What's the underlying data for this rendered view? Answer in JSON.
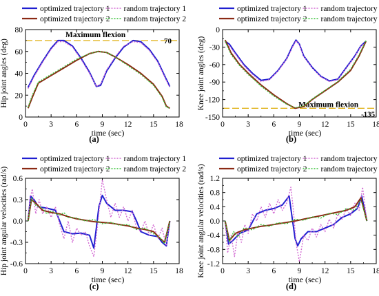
{
  "colors": {
    "opt1": "#1f1fd0",
    "rand1": "#d36ad3",
    "opt2": "#8b2a14",
    "rand2": "#38c238",
    "flex": "#e0b31c"
  },
  "legend_labels": [
    "optimized trajectory 1",
    "random trajectory 1",
    "optimized trajectory 2",
    "random trajectory 2"
  ],
  "chart_data": [
    {
      "id": "a",
      "type": "line",
      "panel_label": "(a)",
      "xlabel": "time (sec)",
      "ylabel": "Hip joint angles (deg)",
      "xlim": [
        0,
        18
      ],
      "ylim": [
        0,
        80
      ],
      "xticks": [
        0,
        3,
        6,
        9,
        12,
        15,
        18
      ],
      "yticks": [
        0,
        20,
        40,
        60,
        80
      ],
      "annotation": {
        "text": "Maximum flexion",
        "value_label": "70",
        "y": 70
      },
      "series": [
        {
          "name": "optimized trajectory 1",
          "style": "solid",
          "x": [
            0.3,
            1,
            2,
            3,
            3.8,
            4.5,
            5.5,
            6.5,
            7.5,
            8.3,
            8.8,
            9.5,
            10.5,
            11.5,
            12.6,
            13.5,
            14.5,
            15.5,
            16.4,
            16.9
          ],
          "y": [
            27,
            38,
            51,
            63,
            70,
            70,
            65,
            54,
            41,
            28,
            29,
            42,
            54,
            64,
            70,
            69,
            62,
            51,
            36,
            28
          ]
        },
        {
          "name": "random trajectory 1",
          "style": "dotted",
          "x": [
            0.3,
            1,
            2,
            3,
            3.8,
            4.5,
            5.5,
            6.5,
            7.5,
            8.3,
            8.8,
            9.5,
            10.5,
            11.5,
            12.6,
            13.5,
            14.5,
            15.5,
            16.4,
            16.9
          ],
          "y": [
            26,
            37,
            50,
            62,
            69,
            69,
            64,
            53,
            40,
            28,
            30,
            43,
            55,
            65,
            69,
            68,
            61,
            50,
            35,
            27
          ]
        },
        {
          "name": "optimized trajectory 2",
          "style": "solid",
          "x": [
            0.3,
            0.8,
            1.5,
            3,
            4.5,
            6,
            7.5,
            8.5,
            9.5,
            10.5,
            12,
            13.5,
            15,
            16,
            16.5,
            16.9
          ],
          "y": [
            8,
            18,
            31,
            38,
            45,
            52,
            58,
            60,
            59,
            55,
            48,
            40,
            30,
            19,
            10,
            8
          ]
        },
        {
          "name": "random trajectory 2",
          "style": "dotted",
          "x": [
            0.3,
            0.8,
            1.5,
            3,
            4.5,
            6,
            7.5,
            8.5,
            9.5,
            10.5,
            12,
            13.5,
            15,
            16,
            16.5,
            16.9
          ],
          "y": [
            9,
            20,
            32,
            39,
            46,
            53,
            58,
            60,
            59,
            55,
            47,
            39,
            29,
            18,
            9,
            8
          ]
        }
      ]
    },
    {
      "id": "b",
      "type": "line",
      "panel_label": "(b)",
      "xlabel": "time (sec)",
      "ylabel": "Knee joint angles (deg)",
      "xlim": [
        0,
        18
      ],
      "ylim": [
        -150,
        0
      ],
      "xticks": [
        0,
        3,
        6,
        9,
        12,
        15,
        18
      ],
      "yticks": [
        -150,
        -120,
        -90,
        -60,
        -30,
        0
      ],
      "annotation": {
        "text": "Maximum flexion",
        "value_label": "-135",
        "y": -135
      },
      "series": [
        {
          "name": "optimized trajectory 1",
          "style": "solid",
          "x": [
            0.3,
            0.8,
            1.5,
            2.5,
            3.5,
            4.5,
            5.5,
            6.5,
            7.5,
            8.2,
            8.6,
            9.0,
            9.5,
            10.5,
            11.5,
            12.5,
            13.5,
            14.5,
            15.5,
            16.2,
            16.8
          ],
          "y": [
            -20,
            -25,
            -40,
            -60,
            -75,
            -87,
            -85,
            -70,
            -50,
            -28,
            -18,
            -25,
            -45,
            -65,
            -80,
            -88,
            -85,
            -65,
            -45,
            -28,
            -20
          ]
        },
        {
          "name": "random trajectory 1",
          "style": "dotted",
          "x": [
            0.3,
            0.8,
            1.5,
            2.5,
            3.5,
            4.5,
            5.5,
            6.5,
            7.5,
            8.2,
            8.6,
            9.0,
            9.5,
            10.5,
            11.5,
            12.5,
            13.5,
            14.5,
            15.5,
            16.2,
            16.8
          ],
          "y": [
            -22,
            -28,
            -42,
            -62,
            -77,
            -89,
            -86,
            -71,
            -51,
            -30,
            -19,
            -26,
            -46,
            -66,
            -81,
            -89,
            -86,
            -66,
            -46,
            -29,
            -21
          ]
        },
        {
          "name": "optimized trajectory 2",
          "style": "solid",
          "x": [
            0.3,
            1,
            2,
            3,
            4.5,
            6,
            7.5,
            8.5,
            9.5,
            10.5,
            12,
            13.5,
            15,
            16,
            16.8
          ],
          "y": [
            -18,
            -40,
            -60,
            -75,
            -95,
            -112,
            -127,
            -135,
            -132,
            -120,
            -105,
            -90,
            -70,
            -45,
            -20
          ]
        },
        {
          "name": "random trajectory 2",
          "style": "dotted",
          "x": [
            0.3,
            1,
            2,
            3,
            4.5,
            6,
            7.5,
            8.5,
            9.5,
            10.5,
            12,
            13.5,
            15,
            16,
            16.8
          ],
          "y": [
            -20,
            -43,
            -62,
            -77,
            -97,
            -114,
            -128,
            -134,
            -131,
            -119,
            -104,
            -89,
            -68,
            -43,
            -19
          ]
        }
      ]
    },
    {
      "id": "c",
      "type": "line",
      "panel_label": "(c)",
      "xlabel": "time (sec)",
      "ylabel": "Hip joint angular velocities (rad/s)",
      "xlim": [
        0,
        18
      ],
      "ylim": [
        -0.6,
        0.6
      ],
      "xticks": [
        0,
        3,
        6,
        9,
        12,
        15,
        18
      ],
      "yticks": [
        -0.6,
        -0.3,
        0.0,
        0.3,
        0.6
      ],
      "yticklabels": [
        "-0.6",
        "-0.3",
        "0.0",
        "0.3",
        "0.6"
      ],
      "series": [
        {
          "name": "optimized trajectory 1",
          "style": "solid",
          "x": [
            0.3,
            0.6,
            1.0,
            1.5,
            2.5,
            3.5,
            4.0,
            4.5,
            5.5,
            6.5,
            7.5,
            8.0,
            8.3,
            8.6,
            9.0,
            9.5,
            10.5,
            11.5,
            12.5,
            13.0,
            13.5,
            14.5,
            15.5,
            16.0,
            16.5,
            16.9
          ],
          "y": [
            0.0,
            0.35,
            0.3,
            0.2,
            0.18,
            0.15,
            0.0,
            -0.15,
            -0.18,
            -0.17,
            -0.2,
            -0.38,
            -0.1,
            0.2,
            0.36,
            0.25,
            0.15,
            0.15,
            0.13,
            0.0,
            -0.15,
            -0.2,
            -0.22,
            -0.3,
            -0.35,
            0.0
          ]
        },
        {
          "name": "random trajectory 1",
          "style": "dotted",
          "x": [
            0.3,
            0.5,
            0.8,
            1.2,
            1.6,
            2.0,
            2.5,
            3.0,
            3.5,
            4.0,
            4.5,
            5.0,
            5.5,
            6.0,
            6.5,
            7.0,
            7.5,
            8.0,
            8.5,
            9.0,
            9.5,
            10.0,
            10.5,
            11.0,
            11.5,
            12.0,
            12.5,
            13.0,
            13.5,
            14.0,
            14.5,
            15.0,
            15.5,
            16.0,
            16.5,
            16.9
          ],
          "y": [
            0.0,
            0.3,
            0.45,
            0.1,
            0.3,
            0.1,
            0.2,
            0.05,
            0.2,
            -0.05,
            -0.25,
            0.0,
            -0.3,
            -0.1,
            -0.2,
            -0.15,
            -0.35,
            -0.5,
            0.0,
            0.58,
            0.3,
            0.05,
            0.25,
            0.05,
            0.2,
            0.0,
            0.15,
            -0.1,
            -0.15,
            0.0,
            -0.2,
            -0.05,
            -0.25,
            -0.1,
            -0.35,
            0.0
          ]
        },
        {
          "name": "optimized trajectory 2",
          "style": "solid",
          "x": [
            0.3,
            0.7,
            1.2,
            2.0,
            3.0,
            4.0,
            5.0,
            6.0,
            7.0,
            8.0,
            9.0,
            10.0,
            11.0,
            12.0,
            13.0,
            14.0,
            15.0,
            15.8,
            16.3,
            16.9
          ],
          "y": [
            0.0,
            0.3,
            0.25,
            0.15,
            0.12,
            0.1,
            0.06,
            0.03,
            0.01,
            -0.01,
            -0.02,
            -0.03,
            -0.05,
            -0.07,
            -0.1,
            -0.12,
            -0.15,
            -0.25,
            -0.3,
            0.0
          ]
        },
        {
          "name": "random trajectory 2",
          "style": "dotted",
          "x": [
            0.3,
            0.7,
            1.2,
            2.0,
            2.5,
            3.0,
            4.0,
            4.5,
            5.0,
            6.0,
            7.0,
            8.0,
            9.0,
            10.0,
            11.0,
            12.0,
            13.0,
            14.0,
            15.0,
            15.8,
            16.3,
            16.9
          ],
          "y": [
            0.0,
            0.32,
            0.22,
            0.18,
            0.1,
            0.14,
            0.08,
            0.12,
            0.05,
            0.04,
            0.0,
            0.02,
            -0.04,
            -0.02,
            -0.06,
            -0.05,
            -0.12,
            -0.1,
            -0.18,
            -0.24,
            -0.32,
            0.0
          ]
        }
      ]
    },
    {
      "id": "d",
      "type": "line",
      "panel_label": "(d)",
      "xlabel": "time (sec)",
      "ylabel": "Knee joint angular velocities (rad/s)",
      "xlim": [
        0,
        18
      ],
      "ylim": [
        -1.2,
        1.2
      ],
      "xticks": [
        0,
        3,
        6,
        9,
        12,
        15,
        18
      ],
      "yticks": [
        -1.2,
        -0.8,
        -0.4,
        0.0,
        0.4,
        0.8,
        1.2
      ],
      "yticklabels": [
        "-1.2",
        "-0.8",
        "-0.4",
        "0.0",
        "0.4",
        "0.8",
        "1.2"
      ],
      "series": [
        {
          "name": "optimized trajectory 1",
          "style": "solid",
          "x": [
            0.3,
            0.7,
            1.2,
            2.0,
            3.0,
            4.0,
            5.0,
            6.0,
            7.0,
            7.8,
            8.2,
            8.5,
            8.8,
            9.2,
            10.0,
            11.0,
            12.0,
            13.0,
            14.0,
            15.0,
            15.8,
            16.3,
            16.9
          ],
          "y": [
            0.0,
            -0.65,
            -0.55,
            -0.35,
            -0.25,
            0.2,
            0.3,
            0.35,
            0.45,
            0.7,
            0.0,
            -0.5,
            -0.7,
            -0.5,
            -0.3,
            -0.3,
            -0.2,
            -0.1,
            0.1,
            0.2,
            0.35,
            0.7,
            0.0
          ]
        },
        {
          "name": "random trajectory 1",
          "style": "dotted",
          "x": [
            0.3,
            0.6,
            1.0,
            1.4,
            1.8,
            2.2,
            2.6,
            3.0,
            3.5,
            4.0,
            4.5,
            5.0,
            5.5,
            6.0,
            6.5,
            7.0,
            7.5,
            8.0,
            8.3,
            8.6,
            9.0,
            9.5,
            10.0,
            10.5,
            11.0,
            11.5,
            12.0,
            12.5,
            13.0,
            13.5,
            14.0,
            14.5,
            15.0,
            15.5,
            16.0,
            16.4,
            16.9
          ],
          "y": [
            0.0,
            -0.9,
            -0.4,
            -1.0,
            -0.3,
            -0.6,
            -0.1,
            -0.35,
            0.2,
            0.0,
            0.4,
            0.1,
            0.5,
            0.2,
            0.6,
            0.3,
            0.5,
            0.95,
            0.3,
            -0.6,
            -1.15,
            -0.4,
            -0.55,
            -0.2,
            -0.45,
            -0.1,
            -0.3,
            0.05,
            -0.2,
            0.2,
            0.05,
            0.35,
            0.15,
            0.5,
            0.3,
            0.95,
            0.0
          ]
        },
        {
          "name": "optimized trajectory 2",
          "style": "solid",
          "x": [
            0.3,
            0.8,
            1.5,
            2.5,
            3.5,
            4.5,
            5.5,
            6.5,
            7.5,
            8.5,
            9.5,
            10.5,
            11.5,
            12.5,
            13.5,
            14.5,
            15.5,
            16.2,
            16.9
          ],
          "y": [
            0.0,
            -0.55,
            -0.35,
            -0.25,
            -0.2,
            -0.15,
            -0.12,
            -0.08,
            -0.04,
            0.0,
            0.05,
            0.1,
            0.15,
            0.2,
            0.25,
            0.3,
            0.4,
            0.65,
            0.0
          ]
        },
        {
          "name": "random trajectory 2",
          "style": "dotted",
          "x": [
            0.3,
            0.8,
            1.3,
            1.8,
            2.5,
            3.5,
            4.5,
            5.5,
            6.5,
            7.5,
            8.5,
            9.5,
            10.5,
            11.5,
            12.5,
            13.5,
            14.5,
            15.5,
            16.2,
            16.9
          ],
          "y": [
            0.0,
            -0.6,
            -0.3,
            -0.45,
            -0.2,
            -0.25,
            -0.1,
            -0.15,
            -0.05,
            -0.08,
            0.05,
            0.02,
            0.12,
            0.08,
            0.22,
            0.18,
            0.35,
            0.3,
            0.6,
            0.0
          ]
        }
      ]
    }
  ]
}
